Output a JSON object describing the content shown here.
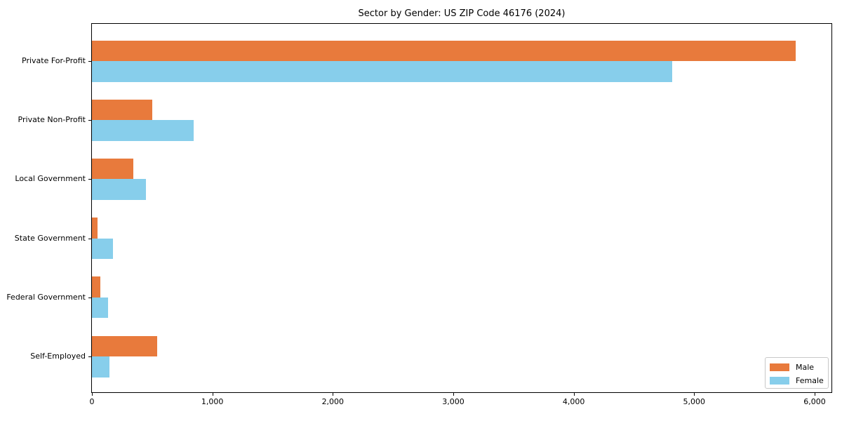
{
  "title": "Sector by Gender: US ZIP Code 46176 (2024)",
  "chart_data": {
    "type": "bar",
    "orientation": "horizontal",
    "title": "Sector by Gender: US ZIP Code 46176 (2024)",
    "categories": [
      "Private For-Profit",
      "Private Non-Profit",
      "Local Government",
      "State Government",
      "Federal Government",
      "Self-Employed"
    ],
    "series": [
      {
        "name": "Male",
        "color": "#E87A3C",
        "values": [
          5845,
          500,
          345,
          45,
          70,
          540
        ]
      },
      {
        "name": "Female",
        "color": "#87CEEB",
        "values": [
          4815,
          845,
          450,
          175,
          135,
          145
        ]
      }
    ],
    "xlabel": "",
    "ylabel": "",
    "xlim": [
      0,
      6140
    ],
    "xticks": [
      0,
      1000,
      2000,
      3000,
      4000,
      5000,
      6000
    ],
    "xtick_labels": [
      "0",
      "1,000",
      "2,000",
      "3,000",
      "4,000",
      "5,000",
      "6,000"
    ],
    "grid": false,
    "legend_position": "lower right"
  }
}
